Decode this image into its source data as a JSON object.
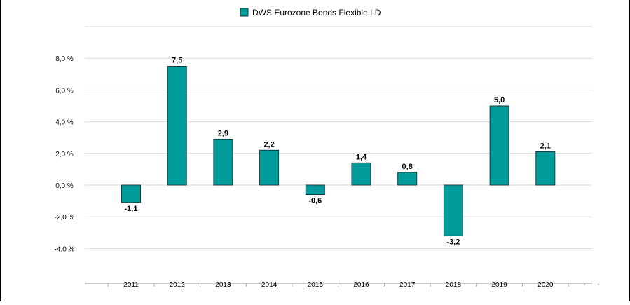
{
  "chart_data": {
    "type": "bar",
    "legend": {
      "label": "DWS Eurozone Bonds Flexible  LD",
      "placement": "top-center"
    },
    "categories": [
      "2011",
      "2012",
      "2013",
      "2014",
      "2015",
      "2016",
      "2017",
      "2018",
      "2019",
      "2020"
    ],
    "series": [
      {
        "name": "DWS Eurozone Bonds Flexible  LD",
        "values": [
          -1.1,
          7.5,
          2.9,
          2.2,
          -0.6,
          1.4,
          0.8,
          -3.2,
          5.0,
          2.1
        ]
      }
    ],
    "value_labels": [
      "-1,1",
      "7,5",
      "2,9",
      "2,2",
      "-0,6",
      "1,4",
      "0,8",
      "-3,2",
      "5,0",
      "2,1"
    ],
    "y_ticks": [
      8,
      6,
      4,
      2,
      0,
      -2,
      -4
    ],
    "y_tick_labels": [
      "8,0 %",
      "6,0 %",
      "4,0 %",
      "2,0 %",
      "0,0 %",
      "-2,0 %",
      "-4,0 %"
    ],
    "ylim": [
      -6,
      10
    ],
    "grid": true,
    "colors": {
      "bar": "#009b9b",
      "bar_stroke": "#1a3a3a",
      "grid": "#d9d9d9",
      "axis": "#a6a6a6"
    }
  }
}
